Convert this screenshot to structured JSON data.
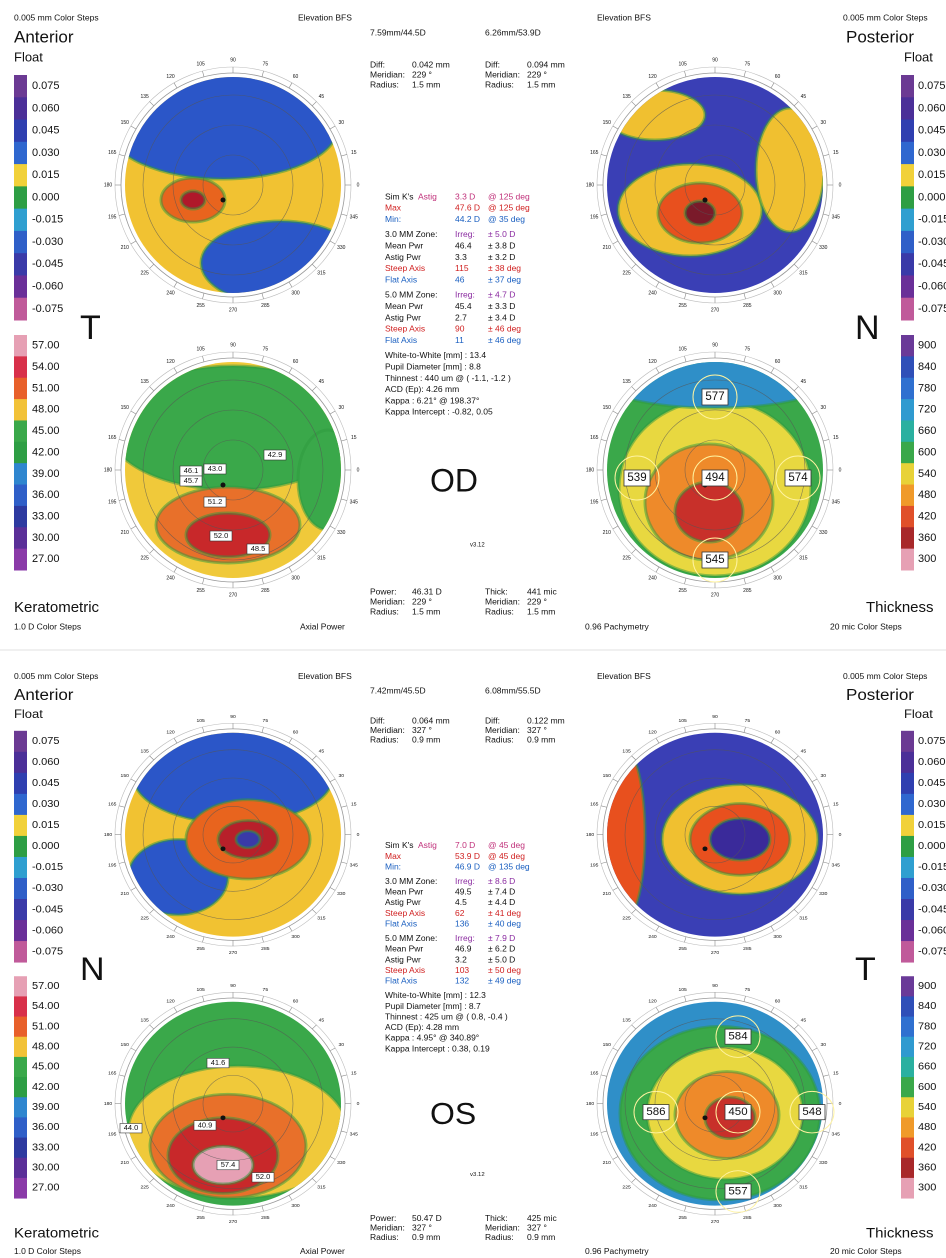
{
  "scales": {
    "elevation": [
      "0.075",
      "0.060",
      "0.045",
      "0.030",
      "0.015",
      "0.000",
      "-0.015",
      "-0.030",
      "-0.045",
      "-0.060",
      "-0.075"
    ],
    "keratometric": [
      "57.00",
      "54.00",
      "51.00",
      "48.00",
      "45.00",
      "42.00",
      "39.00",
      "36.00",
      "33.00",
      "30.00",
      "27.00"
    ],
    "thickness": [
      "900",
      "840",
      "780",
      "720",
      "660",
      "600",
      "540",
      "480",
      "420",
      "360",
      "300"
    ]
  },
  "angles": [
    "0",
    "15",
    "30",
    "45",
    "60",
    "75",
    "90",
    "105",
    "120",
    "135",
    "150",
    "165",
    "180",
    "195",
    "210",
    "225",
    "240",
    "255",
    "270",
    "285",
    "300",
    "315",
    "330",
    "345"
  ],
  "panels": [
    {
      "eye": "OD",
      "version": "v3.12",
      "header": {
        "left_steps": "0.005 mm Color Steps",
        "left_elev": "Elevation BFS",
        "right_elev": "Elevation BFS",
        "right_steps": "0.005 mm Color Steps"
      },
      "bfs": [
        "7.59mm/44.5D",
        "6.26mm/53.9D"
      ],
      "anterior": "Anterior",
      "float_left": "Float",
      "posterior": "Posterior",
      "float_right": "Float",
      "side_left": "T",
      "side_right": "N",
      "diff": [
        [
          [
            "Diff:",
            "0.042 mm"
          ],
          [
            "Meridian:",
            "229 °"
          ],
          [
            "Radius:",
            "1.5 mm"
          ]
        ],
        [
          [
            "Diff:",
            "0.094 mm"
          ],
          [
            "Meridian:",
            "229 °"
          ],
          [
            "Radius:",
            "1.5 mm"
          ]
        ]
      ],
      "info_rows": [
        {
          "cells": [
            "Sim K's",
            "Astig",
            "3.3 D",
            "@ 125 deg"
          ],
          "colors": [
            "#111111",
            "#c0307a",
            "#c0307a",
            "#c0307a"
          ]
        },
        {
          "cells": [
            "Max",
            "47.6 D",
            "@ 125 deg"
          ],
          "colors": [
            "#d02020",
            "#d02020",
            "#d02020"
          ]
        },
        {
          "cells": [
            "Min:",
            "44.2 D",
            "@ 35 deg"
          ],
          "colors": [
            "#1a5fc0",
            "#1a5fc0",
            "#1a5fc0"
          ]
        },
        {
          "cells": [
            "3.0 MM Zone:",
            "Irreg:",
            "± 5.0 D"
          ],
          "colors": [
            "#111111",
            "#8a2aa0",
            "#8a2aa0"
          ]
        },
        {
          "cells": [
            "Mean Pwr",
            "46.4",
            "± 3.8 D"
          ],
          "colors": [
            "#111111",
            "#111111",
            "#111111"
          ]
        },
        {
          "cells": [
            "Astig Pwr",
            "3.3",
            "± 3.2 D"
          ],
          "colors": [
            "#111111",
            "#111111",
            "#111111"
          ]
        },
        {
          "cells": [
            "Steep Axis",
            "115",
            "± 38 deg"
          ],
          "colors": [
            "#d02020",
            "#d02020",
            "#d02020"
          ]
        },
        {
          "cells": [
            "Flat Axis",
            "46",
            "± 37 deg"
          ],
          "colors": [
            "#1a5fc0",
            "#1a5fc0",
            "#1a5fc0"
          ]
        },
        {
          "cells": [
            "5.0 MM Zone:",
            "Irreg:",
            "± 4.7 D"
          ],
          "colors": [
            "#111111",
            "#8a2aa0",
            "#8a2aa0"
          ]
        },
        {
          "cells": [
            "Mean Pwr",
            "45.4",
            "± 3.3 D"
          ],
          "colors": [
            "#111111",
            "#111111",
            "#111111"
          ]
        },
        {
          "cells": [
            "Astig Pwr",
            "2.7",
            "± 3.4 D"
          ],
          "colors": [
            "#111111",
            "#111111",
            "#111111"
          ]
        },
        {
          "cells": [
            "Steep Axis",
            "90",
            "± 46 deg"
          ],
          "colors": [
            "#d02020",
            "#d02020",
            "#d02020"
          ]
        },
        {
          "cells": [
            "Flat Axis",
            "11",
            "± 46 deg"
          ],
          "colors": [
            "#1a5fc0",
            "#1a5fc0",
            "#1a5fc0"
          ]
        },
        {
          "cells": [
            "White-to-White [mm] : 13.4"
          ],
          "colors": [
            "#111111"
          ]
        },
        {
          "cells": [
            "Pupil Diameter [mm] : 8.8"
          ],
          "colors": [
            "#111111"
          ]
        },
        {
          "cells": [
            "Thinnest : 440 um @ ( -1.1, -1.2 )"
          ],
          "colors": [
            "#111111"
          ]
        },
        {
          "cells": [
            "ACD (Ep): 4.26 mm"
          ],
          "colors": [
            "#111111"
          ]
        },
        {
          "cells": [
            "Kappa : 6.21° @ 198.37°"
          ],
          "colors": [
            "#111111"
          ]
        },
        {
          "cells": [
            "Kappa Intercept : -0.82, 0.05"
          ],
          "colors": [
            "#111111"
          ]
        }
      ],
      "bottom_left": {
        "title": "Keratometric",
        "steps": "1.0 D Color Steps",
        "mode": "Axial Power"
      },
      "bottom_right": {
        "pachy": "0.96 Pachymetry",
        "title": "Thickness",
        "steps": "20 mic Color Steps"
      },
      "power": [
        [
          "Power:",
          "46.31 D"
        ],
        [
          "Meridian:",
          "229 °"
        ],
        [
          "Radius:",
          "1.5 mm"
        ]
      ],
      "thick": [
        [
          "Thick:",
          "441 mic"
        ],
        [
          "Meridian:",
          "229 °"
        ],
        [
          "Radius:",
          "1.5 mm"
        ]
      ],
      "k_labels": [
        "46.1",
        "45.7",
        "43.0",
        "42.9",
        "51.2",
        "52.0",
        "48.5"
      ],
      "t_labels": [
        "577",
        "539",
        "494",
        "574",
        "545"
      ]
    },
    {
      "eye": "OS",
      "version": "v3.12",
      "header": {
        "left_steps": "0.005 mm Color Steps",
        "left_elev": "Elevation BFS",
        "right_elev": "Elevation BFS",
        "right_steps": "0.005 mm Color Steps"
      },
      "bfs": [
        "7.42mm/45.5D",
        "6.08mm/55.5D"
      ],
      "anterior": "Anterior",
      "float_left": "Float",
      "posterior": "Posterior",
      "float_right": "Float",
      "side_left": "N",
      "side_right": "T",
      "diff": [
        [
          [
            "Diff:",
            "0.064 mm"
          ],
          [
            "Meridian:",
            "327 °"
          ],
          [
            "Radius:",
            "0.9 mm"
          ]
        ],
        [
          [
            "Diff:",
            "0.122 mm"
          ],
          [
            "Meridian:",
            "327 °"
          ],
          [
            "Radius:",
            "0.9 mm"
          ]
        ]
      ],
      "info_rows": [
        {
          "cells": [
            "Sim K's",
            "Astig",
            "7.0 D",
            "@ 45 deg"
          ],
          "colors": [
            "#111111",
            "#c0307a",
            "#c0307a",
            "#c0307a"
          ]
        },
        {
          "cells": [
            "Max",
            "53.9 D",
            "@ 45 deg"
          ],
          "colors": [
            "#d02020",
            "#d02020",
            "#d02020"
          ]
        },
        {
          "cells": [
            "Min:",
            "46.9 D",
            "@ 135 deg"
          ],
          "colors": [
            "#1a5fc0",
            "#1a5fc0",
            "#1a5fc0"
          ]
        },
        {
          "cells": [
            "3.0 MM Zone:",
            "Irreg:",
            "± 8.6 D"
          ],
          "colors": [
            "#111111",
            "#8a2aa0",
            "#8a2aa0"
          ]
        },
        {
          "cells": [
            "Mean Pwr",
            "49.5",
            "± 7.4 D"
          ],
          "colors": [
            "#111111",
            "#111111",
            "#111111"
          ]
        },
        {
          "cells": [
            "Astig Pwr",
            "4.5",
            "± 4.4 D"
          ],
          "colors": [
            "#111111",
            "#111111",
            "#111111"
          ]
        },
        {
          "cells": [
            "Steep Axis",
            "62",
            "± 41 deg"
          ],
          "colors": [
            "#d02020",
            "#d02020",
            "#d02020"
          ]
        },
        {
          "cells": [
            "Flat Axis",
            "136",
            "± 40 deg"
          ],
          "colors": [
            "#1a5fc0",
            "#1a5fc0",
            "#1a5fc0"
          ]
        },
        {
          "cells": [
            "5.0 MM Zone:",
            "Irreg:",
            "± 7.9 D"
          ],
          "colors": [
            "#111111",
            "#8a2aa0",
            "#8a2aa0"
          ]
        },
        {
          "cells": [
            "Mean Pwr",
            "46.9",
            "± 6.2 D"
          ],
          "colors": [
            "#111111",
            "#111111",
            "#111111"
          ]
        },
        {
          "cells": [
            "Astig Pwr",
            "3.2",
            "± 5.0 D"
          ],
          "colors": [
            "#111111",
            "#111111",
            "#111111"
          ]
        },
        {
          "cells": [
            "Steep Axis",
            "103",
            "± 50 deg"
          ],
          "colors": [
            "#d02020",
            "#d02020",
            "#d02020"
          ]
        },
        {
          "cells": [
            "Flat Axis",
            "132",
            "± 49 deg"
          ],
          "colors": [
            "#1a5fc0",
            "#1a5fc0",
            "#1a5fc0"
          ]
        },
        {
          "cells": [
            "White-to-White [mm] : 12.3"
          ],
          "colors": [
            "#111111"
          ]
        },
        {
          "cells": [
            "Pupil Diameter [mm] : 8.7"
          ],
          "colors": [
            "#111111"
          ]
        },
        {
          "cells": [
            "Thinnest : 425 um @ ( 0.8, -0.4 )"
          ],
          "colors": [
            "#111111"
          ]
        },
        {
          "cells": [
            "ACD (Ep): 4.28 mm"
          ],
          "colors": [
            "#111111"
          ]
        },
        {
          "cells": [
            "Kappa : 4.95° @ 340.89°"
          ],
          "colors": [
            "#111111"
          ]
        },
        {
          "cells": [
            "Kappa Intercept : 0.38, 0.19"
          ],
          "colors": [
            "#111111"
          ]
        }
      ],
      "bottom_left": {
        "title": "Keratometric",
        "steps": "1.0 D Color Steps",
        "mode": "Axial Power"
      },
      "bottom_right": {
        "pachy": "0.96 Pachymetry",
        "title": "Thickness",
        "steps": "20 mic Color Steps"
      },
      "power": [
        [
          "Power:",
          "50.47 D"
        ],
        [
          "Meridian:",
          "327 °"
        ],
        [
          "Radius:",
          "0.9 mm"
        ]
      ],
      "thick": [
        [
          "Thick:",
          "425 mic"
        ],
        [
          "Meridian:",
          "327 °"
        ],
        [
          "Radius:",
          "0.9 mm"
        ]
      ],
      "k_labels": [
        "41.6",
        "44.0",
        "40.9",
        "57.4",
        "52.0"
      ],
      "t_labels": [
        "584",
        "586",
        "450",
        "548",
        "557"
      ]
    }
  ]
}
